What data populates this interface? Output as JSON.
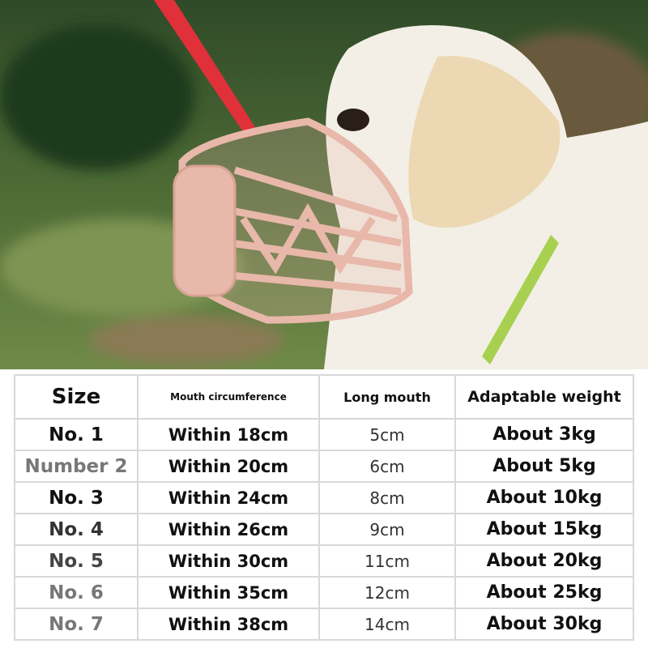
{
  "table": {
    "headers": [
      "Size",
      "Mouth circumference",
      "Long mouth",
      "Adaptable weight"
    ],
    "rows": [
      {
        "size": "No. 1",
        "circumference": "Within 18cm",
        "length": "5cm",
        "weight": "About 3kg",
        "size_color": "#111111"
      },
      {
        "size": "Number 2",
        "circumference": "Within 20cm",
        "length": "6cm",
        "weight": "About 5kg",
        "size_color": "#777777"
      },
      {
        "size": "No. 3",
        "circumference": "Within 24cm",
        "length": "8cm",
        "weight": "About 10kg",
        "size_color": "#111111"
      },
      {
        "size": "No. 4",
        "circumference": "Within 26cm",
        "length": "9cm",
        "weight": "About 15kg",
        "size_color": "#333333"
      },
      {
        "size": "No. 5",
        "circumference": "Within 30cm",
        "length": "11cm",
        "weight": "About 20kg",
        "size_color": "#444444"
      },
      {
        "size": "No. 6",
        "circumference": "Within 35cm",
        "length": "12cm",
        "weight": "About 25kg",
        "size_color": "#777777"
      },
      {
        "size": "No. 7",
        "circumference": "Within 38cm",
        "length": "14cm",
        "weight": "About 30kg",
        "size_color": "#777777"
      }
    ]
  },
  "colors": {
    "muzzle": "#e8b8aa",
    "leash": "#e0303a",
    "collar": "#a8d050"
  }
}
